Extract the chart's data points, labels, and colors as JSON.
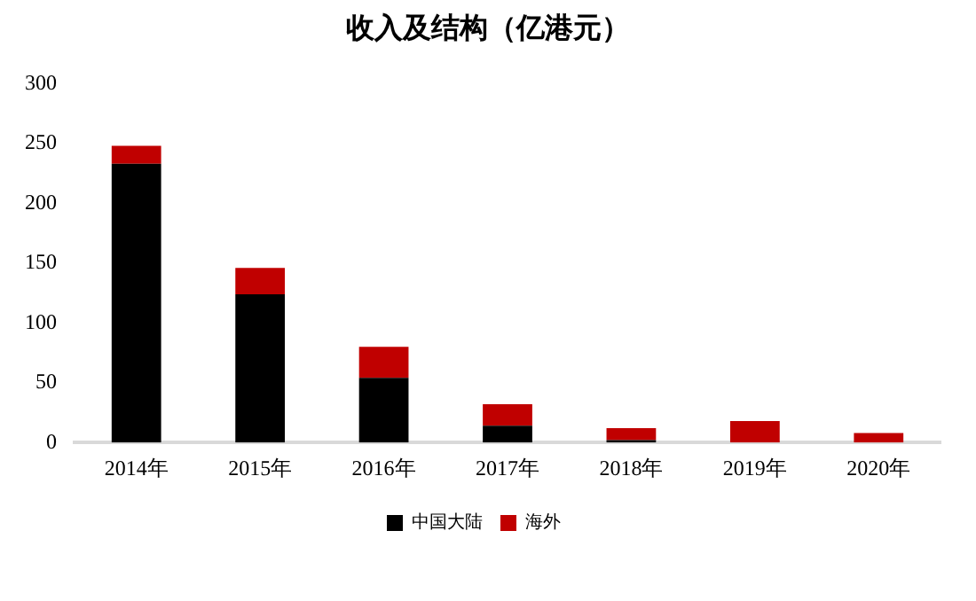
{
  "chart_data": {
    "type": "bar",
    "title": "收入及结构（亿港元）",
    "categories": [
      "2014年",
      "2015年",
      "2016年",
      "2017年",
      "2018年",
      "2019年",
      "2020年"
    ],
    "stacked": true,
    "series": [
      {
        "name": "中国大陆",
        "color": "#000000",
        "values": [
          233,
          124,
          54,
          14,
          2,
          0,
          0
        ]
      },
      {
        "name": "海外",
        "color": "#c00000",
        "values": [
          15,
          22,
          26,
          18,
          10,
          18,
          8
        ]
      }
    ],
    "ylim": [
      0,
      300
    ],
    "yticks": [
      0,
      50,
      100,
      150,
      200,
      250,
      300
    ],
    "grid": false,
    "legend": "bottom"
  }
}
